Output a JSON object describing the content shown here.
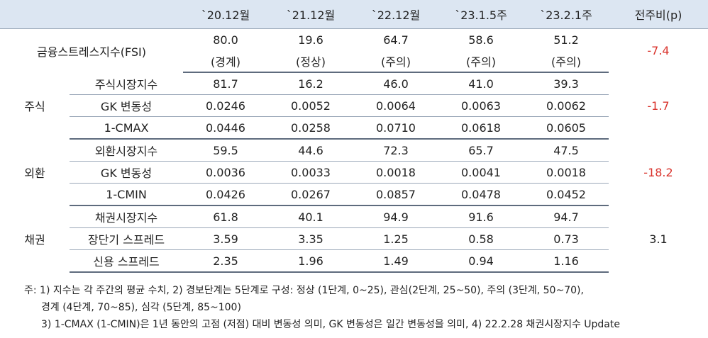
{
  "header": [
    "",
    "`20.12월",
    "`21.12월",
    "`22.12월",
    "`23.1.5주",
    "`23.2.1주",
    "전주비(p)"
  ],
  "fsi": {
    "label": "금융스트레스지수(FSI)",
    "values": [
      "80.0",
      "19.6",
      "64.7",
      "58.6",
      "51.2"
    ],
    "stages": [
      "(경계)",
      "(정상)",
      "(주의)",
      "(주의)",
      "(주의)"
    ],
    "change": "-7.4"
  },
  "groups": [
    {
      "name": "주식",
      "change": "-1.7",
      "rows": [
        {
          "label": "주식시장지수",
          "values": [
            "81.7",
            "16.2",
            "46.0",
            "41.0",
            "39.3"
          ]
        },
        {
          "label": "GK 변동성",
          "values": [
            "0.0246",
            "0.0052",
            "0.0064",
            "0.0063",
            "0.0062"
          ]
        },
        {
          "label": "1-CMAX",
          "values": [
            "0.0446",
            "0.0258",
            "0.0710",
            "0.0618",
            "0.0605"
          ]
        }
      ]
    },
    {
      "name": "외환",
      "change": "-18.2",
      "rows": [
        {
          "label": "외환시장지수",
          "values": [
            "59.5",
            "44.6",
            "72.3",
            "65.7",
            "47.5"
          ]
        },
        {
          "label": "GK 변동성",
          "values": [
            "0.0036",
            "0.0033",
            "0.0018",
            "0.0041",
            "0.0018"
          ]
        },
        {
          "label": "1-CMIN",
          "values": [
            "0.0426",
            "0.0267",
            "0.0857",
            "0.0478",
            "0.0452"
          ]
        }
      ]
    },
    {
      "name": "채권",
      "change": "3.1",
      "rows": [
        {
          "label": "채권시장지수",
          "values": [
            "61.8",
            "40.1",
            "94.9",
            "91.6",
            "94.7"
          ]
        },
        {
          "label": "장단기 스프레드",
          "values": [
            "3.59",
            "3.35",
            "1.25",
            "0.58",
            "0.73"
          ]
        },
        {
          "label": "신용 스프레드",
          "values": [
            "2.35",
            "1.96",
            "1.49",
            "0.94",
            "1.16"
          ]
        }
      ]
    }
  ],
  "notes": [
    "주: 1) 지수는 각 주간의 평균 수치, 2) 경보단계는 5단계로 구성: 정상 (1단계, 0~25), 관심(2단계, 25~50), 주의 (3단계, 50~70),",
    "경계 (4단계, 70~85), 심각 (5단계, 85~100)",
    "3) 1-CMAX (1-CMIN)은 1년 동안의 고점 (저점) 대비 변동성 의미, GK 변동성은 일간 변동성을 의미, 4) 22.2.28 채권시장지수 Update"
  ],
  "colors": {
    "header_bg": "#dce6f2",
    "negative": "#d9332c",
    "rule": "#5e6b7d"
  }
}
